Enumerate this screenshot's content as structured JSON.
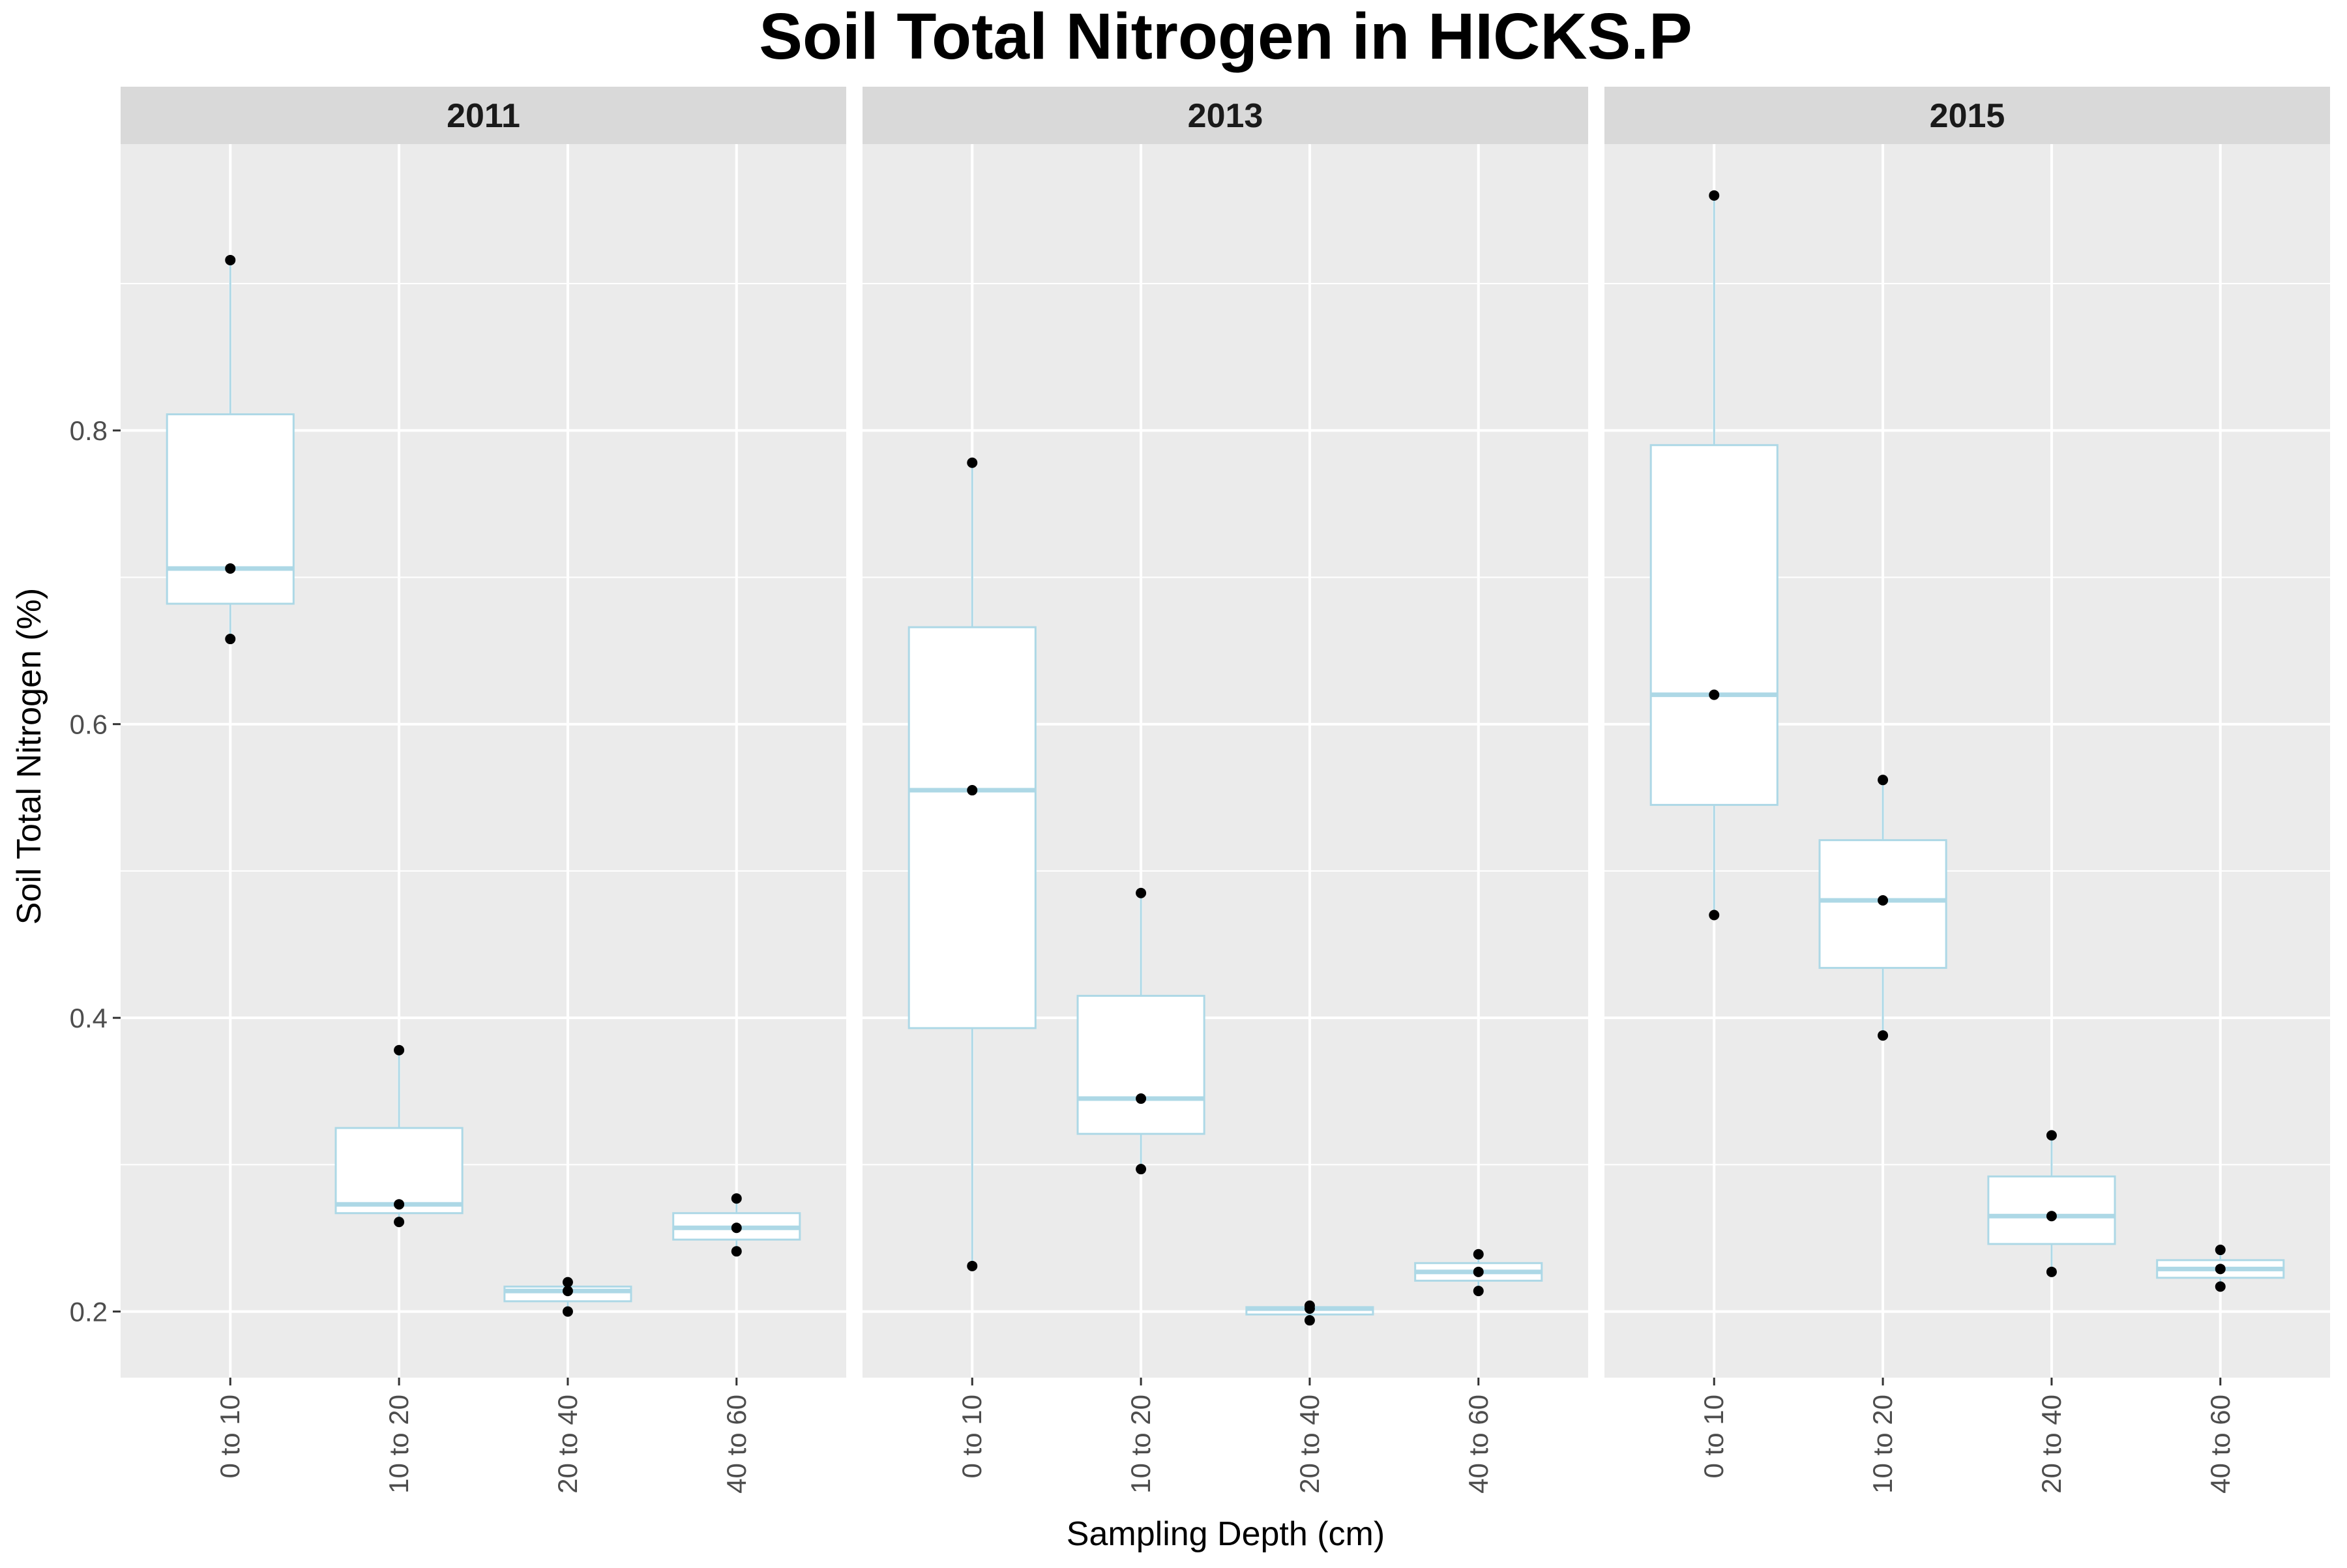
{
  "colors": {
    "panel_bg": "#EBEBEB",
    "strip_bg": "#D9D9D9",
    "grid": "#FFFFFF",
    "box_outline": "#ADD8E6",
    "box_fill": "#FFFFFF",
    "point": "#000000"
  },
  "chart_data": {
    "type": "boxplot",
    "title": "Soil Total Nitrogen in HICKS.P",
    "xlabel": "Sampling Depth (cm)",
    "ylabel": "Soil Total Nitrogen (%)",
    "ylim": [
      0.155,
      0.995
    ],
    "yticks": [
      0.2,
      0.4,
      0.6,
      0.8
    ],
    "ytick_labels": [
      "0.2",
      "0.4",
      "0.6",
      "0.8"
    ],
    "categories": [
      "0 to 10",
      "10 to 20",
      "20 to 40",
      "40 to 60"
    ],
    "grid": true,
    "panels": [
      {
        "label": "2011",
        "boxes": [
          {
            "category": "0 to 10",
            "min": 0.658,
            "q1": 0.682,
            "median": 0.706,
            "q3": 0.811,
            "max": 0.916,
            "points": [
              0.916,
              0.706,
              0.658
            ]
          },
          {
            "category": "10 to 20",
            "min": 0.261,
            "q1": 0.267,
            "median": 0.273,
            "q3": 0.325,
            "max": 0.378,
            "points": [
              0.378,
              0.273,
              0.261
            ]
          },
          {
            "category": "20 to 40",
            "min": 0.2,
            "q1": 0.207,
            "median": 0.214,
            "q3": 0.217,
            "max": 0.22,
            "points": [
              0.22,
              0.214,
              0.2
            ]
          },
          {
            "category": "40 to 60",
            "min": 0.241,
            "q1": 0.249,
            "median": 0.257,
            "q3": 0.267,
            "max": 0.277,
            "points": [
              0.277,
              0.257,
              0.241
            ]
          }
        ]
      },
      {
        "label": "2013",
        "boxes": [
          {
            "category": "0 to 10",
            "min": 0.231,
            "q1": 0.393,
            "median": 0.555,
            "q3": 0.666,
            "max": 0.778,
            "points": [
              0.778,
              0.555,
              0.231
            ]
          },
          {
            "category": "10 to 20",
            "min": 0.297,
            "q1": 0.321,
            "median": 0.345,
            "q3": 0.415,
            "max": 0.485,
            "points": [
              0.485,
              0.345,
              0.297
            ]
          },
          {
            "category": "20 to 40",
            "min": 0.194,
            "q1": 0.198,
            "median": 0.202,
            "q3": 0.203,
            "max": 0.204,
            "points": [
              0.204,
              0.202,
              0.194
            ]
          },
          {
            "category": "40 to 60",
            "min": 0.214,
            "q1": 0.221,
            "median": 0.227,
            "q3": 0.233,
            "max": 0.239,
            "points": [
              0.239,
              0.227,
              0.214
            ]
          }
        ]
      },
      {
        "label": "2015",
        "boxes": [
          {
            "category": "0 to 10",
            "min": 0.47,
            "q1": 0.545,
            "median": 0.62,
            "q3": 0.79,
            "max": 0.96,
            "points": [
              0.96,
              0.62,
              0.47
            ]
          },
          {
            "category": "10 to 20",
            "min": 0.388,
            "q1": 0.434,
            "median": 0.48,
            "q3": 0.521,
            "max": 0.562,
            "points": [
              0.562,
              0.48,
              0.388
            ]
          },
          {
            "category": "20 to 40",
            "min": 0.227,
            "q1": 0.246,
            "median": 0.265,
            "q3": 0.292,
            "max": 0.32,
            "points": [
              0.32,
              0.265,
              0.227
            ]
          },
          {
            "category": "40 to 60",
            "min": 0.217,
            "q1": 0.223,
            "median": 0.229,
            "q3": 0.235,
            "max": 0.242,
            "points": [
              0.242,
              0.229,
              0.217
            ]
          }
        ]
      }
    ]
  }
}
